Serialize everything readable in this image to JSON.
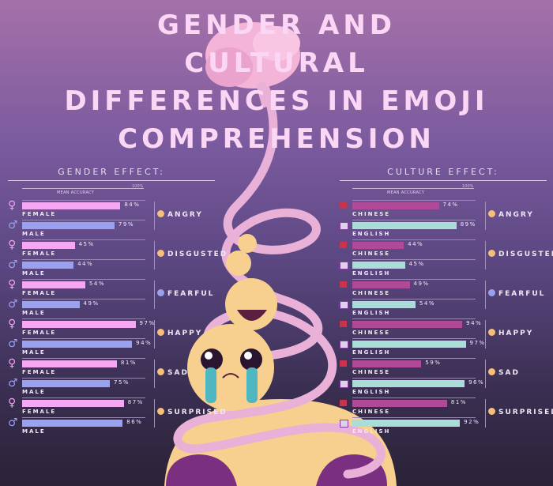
{
  "title_lines": [
    "GENDER AND",
    "CULTURAL",
    "DIFFERENCES IN EMOJI",
    "COMPREHENSION"
  ],
  "colors": {
    "female": "#f6a7f4",
    "male": "#9aa1ee",
    "chinese": "#b04a98",
    "english": "#a9ddd8",
    "title": "#fbd7f5"
  },
  "chart_data": [
    {
      "type": "bar",
      "title": "GENDER EFFECT:",
      "ylabel": "MEAN ACCURACY",
      "scale_max_label": "100%",
      "xlim": [
        0,
        100
      ],
      "categories": [
        "ANGRY",
        "DISGUSTED",
        "FEARFUL",
        "HAPPY",
        "SAD",
        "SURPRISED"
      ],
      "series": [
        {
          "name": "FEMALE",
          "icon": "female-symbol-icon",
          "values": [
            84,
            45,
            54,
            97,
            81,
            87
          ]
        },
        {
          "name": "MALE",
          "icon": "male-symbol-icon",
          "values": [
            79,
            44,
            49,
            94,
            75,
            86
          ]
        }
      ]
    },
    {
      "type": "bar",
      "title": "CULTURE EFFECT:",
      "ylabel": "MEAN ACCURACY",
      "scale_max_label": "100%",
      "xlim": [
        0,
        100
      ],
      "categories": [
        "ANGRY",
        "DISGUSTED",
        "FEARFUL",
        "HAPPY",
        "SAD",
        "SURPRISED"
      ],
      "series": [
        {
          "name": "CHINESE",
          "icon": "china-flag-icon",
          "values": [
            74,
            44,
            49,
            94,
            59,
            81
          ]
        },
        {
          "name": "ENGLISH",
          "icon": "uk-flag-icon",
          "values": [
            89,
            45,
            54,
            97,
            96,
            92
          ]
        }
      ]
    }
  ]
}
